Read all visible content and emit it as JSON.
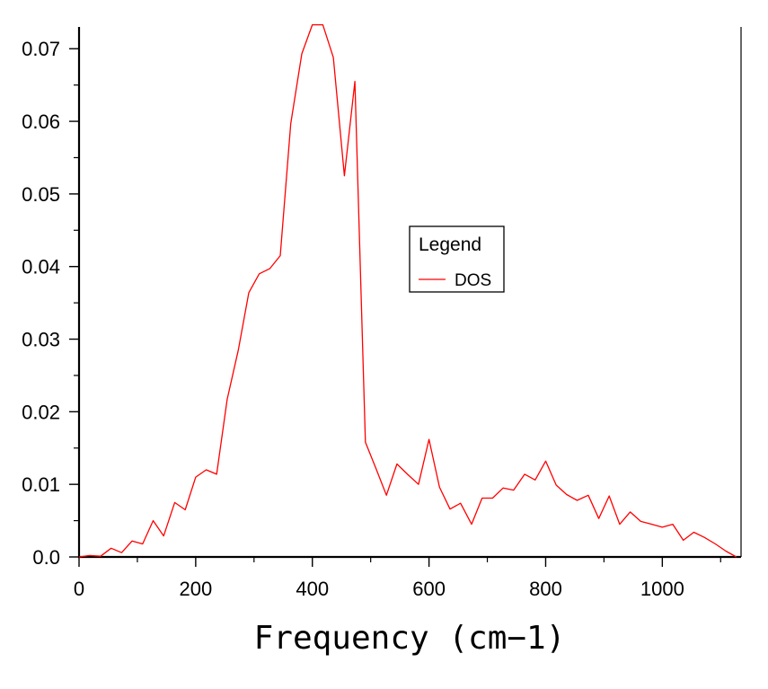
{
  "chart_data": {
    "type": "line",
    "title": "",
    "xlabel": "Frequency (cm−1)",
    "ylabel": "",
    "xlim": [
      0,
      1135
    ],
    "ylim": [
      0,
      0.073
    ],
    "x_ticks": [
      0,
      200,
      400,
      600,
      800,
      1000
    ],
    "y_ticks": [
      0,
      0.01,
      0.02,
      0.03,
      0.04,
      0.05,
      0.06,
      0.07
    ],
    "x_tick_labels": [
      "0",
      "200",
      "400",
      "600",
      "800",
      "1000"
    ],
    "y_tick_labels": [
      "0.0",
      "0.01",
      "0.02",
      "0.03",
      "0.04",
      "0.05",
      "0.06",
      "0.07"
    ],
    "grid": false,
    "legend": {
      "title": "Legend",
      "placement": "center-right"
    },
    "series": [
      {
        "name": "DOS",
        "color": "#ff0000",
        "points": [
          [
            0,
            0.0
          ],
          [
            18,
            0.0002
          ],
          [
            37,
            0.0001
          ],
          [
            55,
            0.0012
          ],
          [
            73,
            0.0006
          ],
          [
            91,
            0.0022
          ],
          [
            109,
            0.0018
          ],
          [
            127,
            0.005
          ],
          [
            145,
            0.0029
          ],
          [
            164,
            0.0075
          ],
          [
            182,
            0.0065
          ],
          [
            200,
            0.011
          ],
          [
            218,
            0.012
          ],
          [
            236,
            0.0114
          ],
          [
            254,
            0.0217
          ],
          [
            273,
            0.0285
          ],
          [
            291,
            0.0364
          ],
          [
            309,
            0.039
          ],
          [
            327,
            0.0397
          ],
          [
            345,
            0.0415
          ],
          [
            363,
            0.0597
          ],
          [
            382,
            0.0693
          ],
          [
            400,
            0.0733
          ],
          [
            418,
            0.0733
          ],
          [
            436,
            0.0688
          ],
          [
            455,
            0.0525
          ],
          [
            473,
            0.0655
          ],
          [
            491,
            0.0158
          ],
          [
            509,
            0.0122
          ],
          [
            527,
            0.0085
          ],
          [
            545,
            0.0128
          ],
          [
            563,
            0.0114
          ],
          [
            582,
            0.01
          ],
          [
            600,
            0.0162
          ],
          [
            618,
            0.0096
          ],
          [
            636,
            0.0066
          ],
          [
            654,
            0.0074
          ],
          [
            673,
            0.0045
          ],
          [
            691,
            0.0081
          ],
          [
            709,
            0.0081
          ],
          [
            727,
            0.0095
          ],
          [
            745,
            0.0092
          ],
          [
            764,
            0.0114
          ],
          [
            782,
            0.0106
          ],
          [
            800,
            0.0132
          ],
          [
            818,
            0.0099
          ],
          [
            836,
            0.0086
          ],
          [
            854,
            0.0078
          ],
          [
            873,
            0.0085
          ],
          [
            891,
            0.0053
          ],
          [
            909,
            0.0084
          ],
          [
            927,
            0.0045
          ],
          [
            945,
            0.0062
          ],
          [
            963,
            0.0049
          ],
          [
            982,
            0.0045
          ],
          [
            1000,
            0.0041
          ],
          [
            1018,
            0.0045
          ],
          [
            1036,
            0.0023
          ],
          [
            1054,
            0.0034
          ],
          [
            1072,
            0.0027
          ],
          [
            1091,
            0.0018
          ],
          [
            1109,
            0.0008
          ],
          [
            1127,
            0.0
          ]
        ]
      }
    ]
  }
}
